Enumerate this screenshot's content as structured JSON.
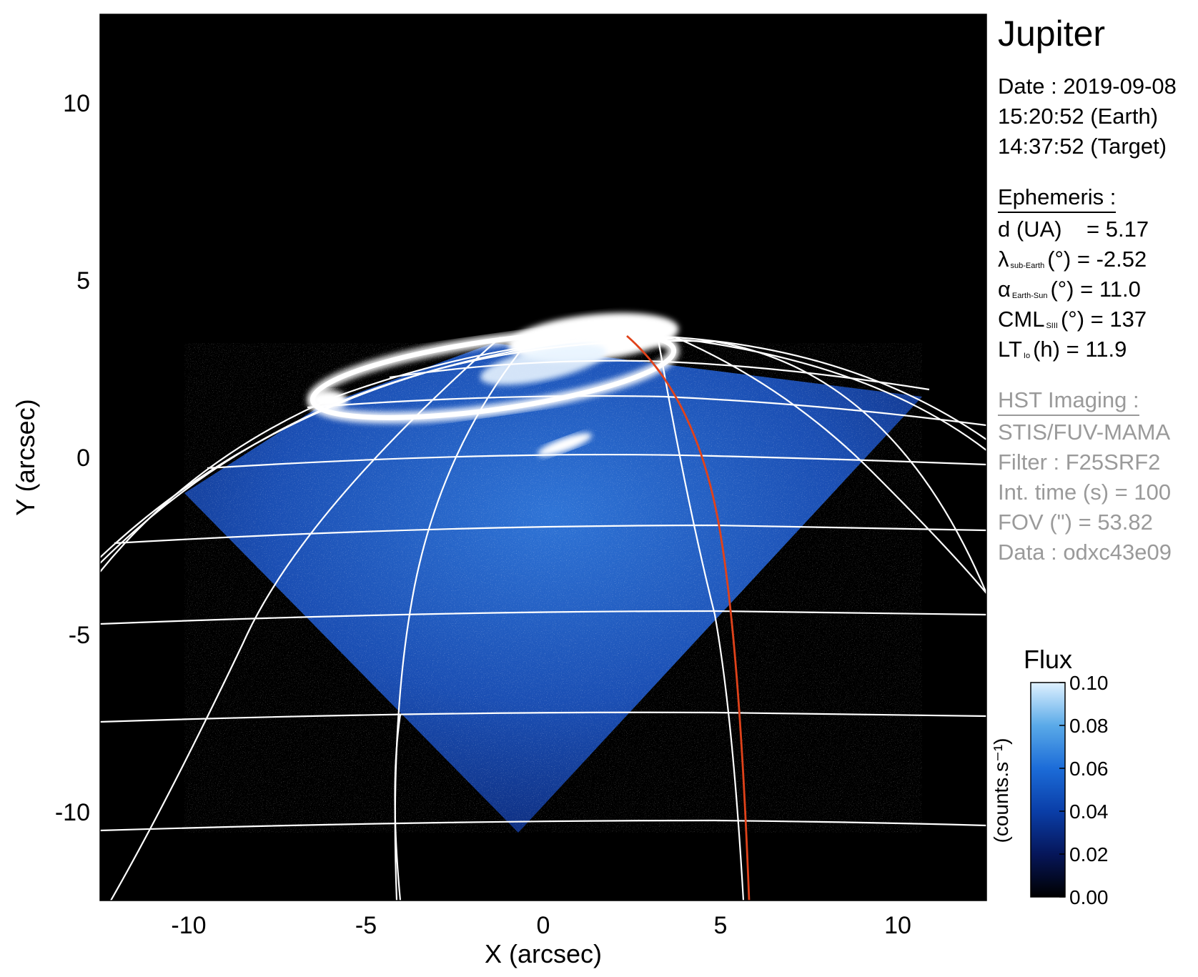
{
  "target": "Jupiter",
  "observation": {
    "date_line": "Date : 2019-09-08",
    "earth_time": "15:20:52 (Earth)",
    "target_time": "14:37:52 (Target)"
  },
  "ephemeris": {
    "header": "Ephemeris :",
    "d": {
      "label": "d (UA)",
      "value": "= 5.17"
    },
    "lambda": {
      "symbol": "λ",
      "sub": "sub-Earth",
      "unit": "(°) =",
      "value": "-2.52"
    },
    "alpha": {
      "symbol": "α",
      "sub": "Earth-Sun",
      "unit": "(°) =",
      "value": "11.0"
    },
    "cml": {
      "symbol": "CML",
      "sub": "SIII",
      "unit": "(°) =",
      "value": "137"
    },
    "lt": {
      "symbol": "LT",
      "sub": "Io",
      "unit": "(h) =",
      "value": "11.9"
    }
  },
  "imaging": {
    "header": "HST Imaging :",
    "instrument": "STIS/FUV-MAMA",
    "filter": "Filter : F25SRF2",
    "int_time": "Int. time (s) = 100",
    "fov": "FOV (\") = 53.82",
    "data": "Data : odxc43e09"
  },
  "axes": {
    "xlabel": "X (arcsec)",
    "ylabel": "Y (arcsec)",
    "xticks": [
      -10,
      -5,
      0,
      5,
      10
    ],
    "yticks": [
      10,
      5,
      0,
      -5,
      -10
    ],
    "xlim": [
      -12.5,
      12.5
    ],
    "ylim": [
      -12.5,
      12.5
    ]
  },
  "colorbar": {
    "title": "Flux",
    "unit_label": "(counts.s⁻¹)",
    "ticks": [
      "0.10",
      "0.08",
      "0.06",
      "0.04",
      "0.02",
      "0.00"
    ],
    "range": [
      0.0,
      0.1
    ],
    "colors": [
      "#000000",
      "#06165a",
      "#0a3ea8",
      "#1c6cd8",
      "#5aaae8",
      "#dff1ff"
    ]
  },
  "colors": {
    "background": "#000000",
    "grid": "#ffffff",
    "io_footprint": "#e0421a"
  }
}
